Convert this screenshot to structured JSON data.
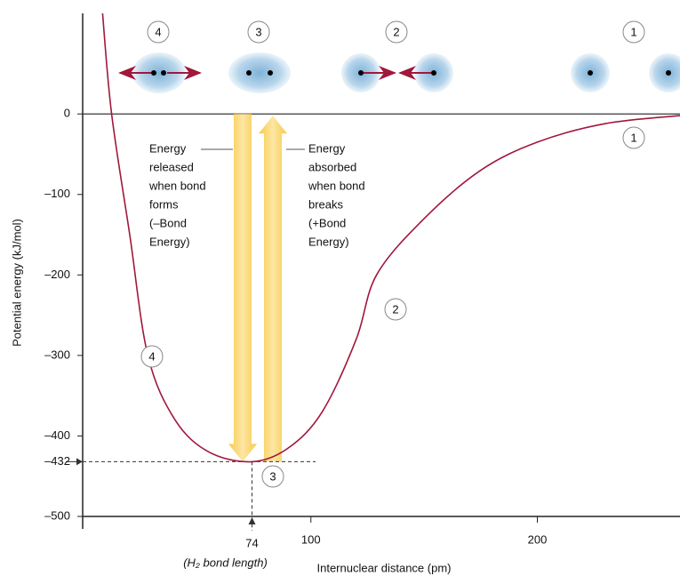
{
  "chart_data": {
    "type": "line",
    "x": [
      8,
      12,
      20,
      28,
      40,
      55,
      74,
      90,
      105,
      120,
      129,
      150,
      175,
      200,
      230,
      263
    ],
    "values": [
      125,
      0,
      -150,
      -300,
      -380,
      -420,
      -432,
      -415,
      -370,
      -280,
      -200,
      -130,
      -70,
      -35,
      -12,
      -2
    ],
    "color": "#a0183c",
    "xlim": [
      0,
      263
    ],
    "ylim": [
      -500,
      125
    ],
    "xticks": [
      100,
      200
    ],
    "yticks": [
      0,
      {
        "value": -100,
        "label": "–100"
      },
      {
        "value": -200,
        "label": "–200"
      },
      {
        "value": -300,
        "label": "–300"
      },
      {
        "value": -400,
        "label": "–400"
      },
      {
        "value": -500,
        "label": "–500"
      }
    ],
    "min_x": 74,
    "min_y": {
      "value": -432,
      "label": "–432"
    },
    "x_label": "Internuclear distance (pm)",
    "y_label": "Potential energy (kJ/mol)",
    "min_x_note": "(H₂ bond length)",
    "top_labels": [
      "4",
      "3",
      "2",
      "1"
    ],
    "curve_labels": [
      "4",
      "3",
      "2",
      "1"
    ],
    "annotations": [
      {
        "lines": [
          "Energy",
          "released",
          "when bond",
          "forms",
          "(–Bond",
          "Energy)"
        ]
      },
      {
        "lines": [
          "Energy",
          "absorbed",
          "when bond",
          "breaks",
          "(+Bond",
          "Energy)"
        ]
      }
    ]
  }
}
